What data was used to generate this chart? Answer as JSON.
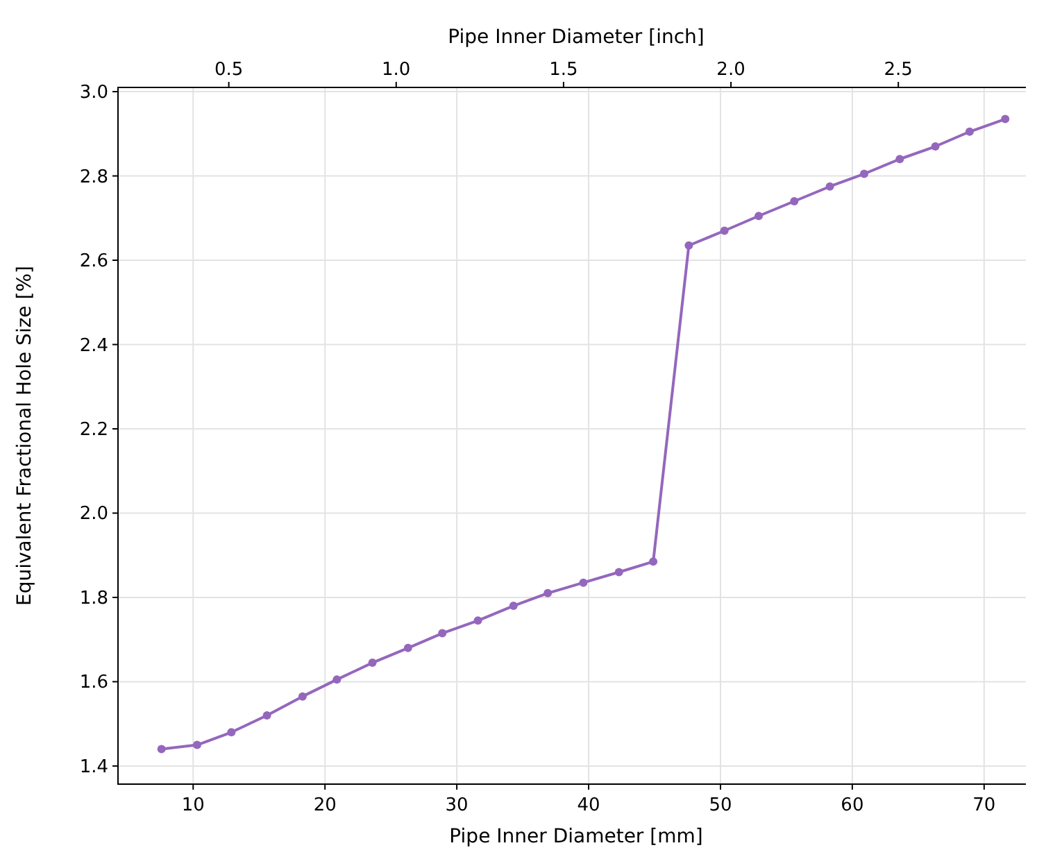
{
  "chart_data": {
    "type": "line",
    "xlabel": "Pipe Inner Diameter [mm]",
    "ylabel": "Equivalent Fractional Hole Size [%]",
    "x2label": "Pipe Inner Diameter [inch]",
    "x": [
      7.6,
      10.3,
      12.9,
      15.6,
      18.3,
      20.9,
      23.6,
      26.3,
      28.9,
      31.6,
      34.3,
      36.9,
      39.6,
      42.3,
      44.9,
      47.6,
      50.3,
      52.9,
      55.6,
      58.3,
      60.9,
      63.6,
      66.3,
      68.9,
      71.6
    ],
    "series": [
      {
        "color": "#9467bd",
        "values": [
          1.44,
          1.45,
          1.48,
          1.52,
          1.565,
          1.605,
          1.645,
          1.68,
          1.715,
          1.745,
          1.78,
          1.81,
          1.835,
          1.86,
          1.885,
          2.635,
          2.67,
          2.705,
          2.74,
          2.775,
          2.805,
          2.84,
          2.87,
          2.905,
          2.935
        ]
      }
    ],
    "xlim": [
      4.3,
      73.8
    ],
    "xticks": [
      10,
      20,
      30,
      40,
      50,
      60,
      70
    ],
    "x2lim": [
      0.169,
      2.906
    ],
    "x2ticks": [
      0.5,
      {
        "value": 1,
        "label": "1.0"
      },
      1.5,
      {
        "value": 2,
        "label": "2.0"
      },
      2.5
    ],
    "ylim": [
      1.357,
      3.01
    ],
    "yticks": [
      1.4,
      1.6,
      1.8,
      {
        "value": 2,
        "label": "2.0"
      },
      2.2,
      2.4,
      2.6,
      2.8,
      {
        "value": 3,
        "label": "3.0"
      }
    ],
    "grid": true,
    "marker": "circle",
    "line_style": "solid"
  }
}
